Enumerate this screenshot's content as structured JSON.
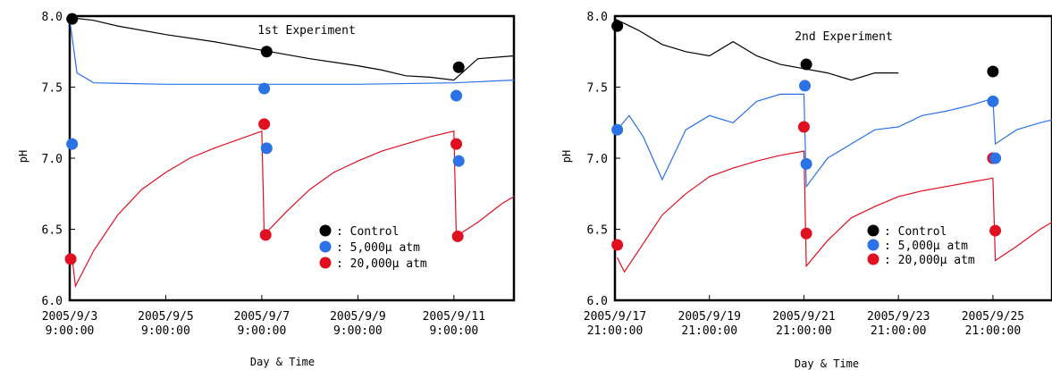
{
  "chart_data": [
    {
      "type": "line",
      "title": "1st Experiment",
      "xlabel": "Day & Time",
      "ylabel": "pH",
      "ylim": [
        6.0,
        8.0
      ],
      "yticks": [
        "6.0",
        "6.5",
        "7.0",
        "7.5",
        "8.0"
      ],
      "xticks": [
        {
          "date": "2005/9/3",
          "time": "9:00:00"
        },
        {
          "date": "2005/9/5",
          "time": "9:00:00"
        },
        {
          "date": "2005/9/7",
          "time": "9:00:00"
        },
        {
          "date": "2005/9/9",
          "time": "9:00:00"
        },
        {
          "date": "2005/9/11",
          "time": "9:00:00"
        }
      ],
      "xlim_days": [
        0,
        9.25
      ],
      "legend": [
        {
          "label": ": Control",
          "color": "#000000"
        },
        {
          "label": ": 5,000μ atm",
          "color": "#2a72e6"
        },
        {
          "label": ": 20,000μ atm",
          "color": "#e01020"
        }
      ],
      "markers": {
        "control": [
          [
            0.05,
            7.98
          ],
          [
            4.1,
            7.75
          ],
          [
            8.1,
            7.64
          ]
        ],
        "5000": [
          [
            0.05,
            7.1
          ],
          [
            4.05,
            7.49
          ],
          [
            4.1,
            7.07
          ],
          [
            8.05,
            7.44
          ],
          [
            8.1,
            6.98
          ]
        ],
        "20000": [
          [
            0.02,
            6.29
          ],
          [
            4.05,
            7.24
          ],
          [
            4.08,
            6.46
          ],
          [
            8.05,
            7.1
          ],
          [
            8.08,
            6.45
          ]
        ]
      },
      "lines": {
        "control": [
          [
            0.0,
            7.99
          ],
          [
            0.5,
            7.97
          ],
          [
            1.0,
            7.93
          ],
          [
            2.0,
            7.87
          ],
          [
            3.0,
            7.82
          ],
          [
            4.0,
            7.76
          ],
          [
            5.0,
            7.7
          ],
          [
            6.0,
            7.65
          ],
          [
            6.5,
            7.62
          ],
          [
            7.0,
            7.58
          ],
          [
            7.5,
            7.57
          ],
          [
            8.0,
            7.55
          ],
          [
            8.5,
            7.7
          ],
          [
            9.25,
            7.72
          ]
        ],
        "5000": [
          [
            0.0,
            7.98
          ],
          [
            0.15,
            7.6
          ],
          [
            0.5,
            7.53
          ],
          [
            2.0,
            7.52
          ],
          [
            4.0,
            7.52
          ],
          [
            6.0,
            7.52
          ],
          [
            8.0,
            7.53
          ],
          [
            9.25,
            7.55
          ]
        ],
        "20000": [
          [
            0.05,
            6.3
          ],
          [
            0.12,
            6.1
          ],
          [
            0.5,
            6.35
          ],
          [
            1.0,
            6.6
          ],
          [
            1.5,
            6.78
          ],
          [
            2.0,
            6.9
          ],
          [
            2.5,
            7.0
          ],
          [
            3.0,
            7.07
          ],
          [
            3.5,
            7.13
          ],
          [
            4.0,
            7.19
          ],
          [
            4.05,
            6.46
          ],
          [
            4.5,
            6.62
          ],
          [
            5.0,
            6.78
          ],
          [
            5.5,
            6.9
          ],
          [
            6.0,
            6.98
          ],
          [
            6.5,
            7.05
          ],
          [
            7.0,
            7.1
          ],
          [
            7.5,
            7.15
          ],
          [
            8.0,
            7.19
          ],
          [
            8.05,
            6.45
          ],
          [
            8.5,
            6.55
          ],
          [
            9.0,
            6.68
          ],
          [
            9.25,
            6.73
          ]
        ]
      }
    },
    {
      "type": "line",
      "title": "2nd Experiment",
      "xlabel": "Day & Time",
      "ylabel": "pH",
      "ylim": [
        6.0,
        8.0
      ],
      "yticks": [
        "6.0",
        "6.5",
        "7.0",
        "7.5",
        "8.0"
      ],
      "xticks": [
        {
          "date": "2005/9/17",
          "time": "21:00:00"
        },
        {
          "date": "2005/9/19",
          "time": "21:00:00"
        },
        {
          "date": "2005/9/21",
          "time": "21:00:00"
        },
        {
          "date": "2005/9/23",
          "time": "21:00:00"
        },
        {
          "date": "2005/9/25",
          "time": "21:00:00"
        }
      ],
      "xlim_days": [
        0,
        9.25
      ],
      "legend": [
        {
          "label": ": Control",
          "color": "#000000"
        },
        {
          "label": ": 5,000μ atm",
          "color": "#2a72e6"
        },
        {
          "label": ": 20,000μ atm",
          "color": "#e01020"
        }
      ],
      "markers": {
        "control": [
          [
            0.05,
            7.93
          ],
          [
            4.05,
            7.66
          ],
          [
            8.0,
            7.61
          ]
        ],
        "5000": [
          [
            0.05,
            7.2
          ],
          [
            4.02,
            7.51
          ],
          [
            4.05,
            6.96
          ],
          [
            8.0,
            7.4
          ],
          [
            8.05,
            7.0
          ]
        ],
        "20000": [
          [
            0.05,
            6.39
          ],
          [
            4.0,
            7.22
          ],
          [
            4.05,
            6.47
          ],
          [
            8.0,
            7.0
          ],
          [
            8.05,
            6.49
          ]
        ]
      },
      "lines": {
        "control": [
          [
            0.0,
            7.98
          ],
          [
            0.5,
            7.9
          ],
          [
            1.0,
            7.8
          ],
          [
            1.5,
            7.75
          ],
          [
            2.0,
            7.72
          ],
          [
            2.5,
            7.82
          ],
          [
            3.0,
            7.72
          ],
          [
            3.5,
            7.66
          ],
          [
            4.0,
            7.63
          ],
          [
            4.5,
            7.6
          ],
          [
            5.0,
            7.55
          ],
          [
            5.5,
            7.6
          ],
          [
            6.0,
            7.6
          ]
        ],
        "5000": [
          [
            0.05,
            7.2
          ],
          [
            0.3,
            7.3
          ],
          [
            0.6,
            7.15
          ],
          [
            1.0,
            6.85
          ],
          [
            1.5,
            7.2
          ],
          [
            2.0,
            7.3
          ],
          [
            2.5,
            7.25
          ],
          [
            3.0,
            7.4
          ],
          [
            3.5,
            7.45
          ],
          [
            4.0,
            7.45
          ],
          [
            4.05,
            6.8
          ],
          [
            4.5,
            7.0
          ],
          [
            5.0,
            7.1
          ],
          [
            5.5,
            7.2
          ],
          [
            6.0,
            7.22
          ],
          [
            6.5,
            7.3
          ],
          [
            7.0,
            7.33
          ],
          [
            7.5,
            7.37
          ],
          [
            8.0,
            7.42
          ],
          [
            8.05,
            7.1
          ],
          [
            8.5,
            7.2
          ],
          [
            9.0,
            7.25
          ],
          [
            9.25,
            7.27
          ]
        ],
        "20000": [
          [
            0.05,
            6.3
          ],
          [
            0.2,
            6.2
          ],
          [
            0.5,
            6.35
          ],
          [
            1.0,
            6.6
          ],
          [
            1.5,
            6.75
          ],
          [
            2.0,
            6.87
          ],
          [
            2.5,
            6.93
          ],
          [
            3.0,
            6.98
          ],
          [
            3.5,
            7.02
          ],
          [
            4.0,
            7.05
          ],
          [
            4.05,
            6.24
          ],
          [
            4.5,
            6.42
          ],
          [
            5.0,
            6.58
          ],
          [
            5.5,
            6.66
          ],
          [
            6.0,
            6.73
          ],
          [
            6.5,
            6.77
          ],
          [
            7.0,
            6.8
          ],
          [
            7.5,
            6.83
          ],
          [
            8.0,
            6.86
          ],
          [
            8.05,
            6.28
          ],
          [
            8.5,
            6.38
          ],
          [
            9.0,
            6.5
          ],
          [
            9.25,
            6.55
          ]
        ]
      }
    }
  ]
}
